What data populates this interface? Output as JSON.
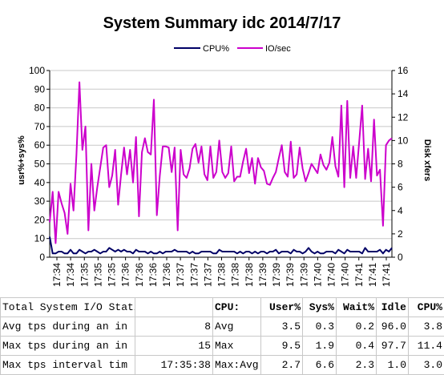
{
  "chart_data": {
    "type": "line",
    "title": "System Summary idc  2014/7/17",
    "ylabel_left": "usr%+sys%",
    "ylabel_right": "Disk xfers",
    "ylim_left": [
      0,
      100
    ],
    "ylim_right": [
      0,
      16
    ],
    "yticks_left": [
      0,
      10,
      20,
      30,
      40,
      50,
      60,
      70,
      80,
      90,
      100
    ],
    "yticks_right": [
      0,
      2,
      4,
      6,
      8,
      10,
      12,
      14,
      16
    ],
    "x_labels": [
      "17:34",
      "17:34",
      "17:35",
      "17:35",
      "17:35",
      "17:36",
      "17:36",
      "17:36",
      "17:36",
      "17:37",
      "17:37",
      "17:37",
      "17:38",
      "17:38",
      "17:38",
      "17:39",
      "17:39",
      "17:39",
      "17:39",
      "17:40",
      "17:40",
      "17:40",
      "17:41",
      "17:41",
      "17:41"
    ],
    "grid": "horizontal",
    "legend_position": "top",
    "series": [
      {
        "name": "CPU%",
        "axis": "left",
        "color": "#000066",
        "values": [
          11,
          2,
          2,
          3,
          3,
          2,
          2,
          4,
          2,
          2,
          4,
          3,
          2,
          3,
          3,
          4,
          3,
          2,
          3,
          3,
          5,
          4,
          3,
          4,
          3,
          4,
          3,
          3,
          2,
          4,
          3,
          3,
          3,
          2,
          3,
          2,
          2,
          3,
          2,
          3,
          3,
          3,
          4,
          3,
          3,
          3,
          3,
          2,
          3,
          2,
          2,
          3,
          3,
          3,
          3,
          2,
          2,
          4,
          3,
          3,
          3,
          3,
          3,
          2,
          3,
          2,
          3,
          3,
          2,
          3,
          2,
          3,
          3,
          2,
          3,
          3,
          4,
          2,
          3,
          3,
          3,
          2,
          4,
          3,
          3,
          2,
          3,
          5,
          3,
          2,
          3,
          2,
          2,
          3,
          3,
          3,
          2,
          4,
          3,
          2,
          4,
          3,
          3,
          3,
          3,
          2,
          5,
          3,
          3,
          3,
          3,
          4,
          2,
          4,
          3,
          5
        ]
      },
      {
        "name": "IO/sec",
        "axis": "right",
        "color": "#cc00cc",
        "values": [
          3,
          5.6,
          1.2,
          5.6,
          4.6,
          3.8,
          2,
          6.3,
          4,
          8.8,
          15,
          9.2,
          11.2,
          2.3,
          8,
          4,
          6,
          7.7,
          9.4,
          9.6,
          6,
          7,
          9.2,
          4.5,
          7.1,
          9.4,
          7.1,
          9.2,
          6.4,
          10.3,
          3.5,
          9,
          10.2,
          9,
          8.8,
          13.5,
          3.6,
          7,
          9.5,
          9.5,
          9.4,
          7.3,
          9.4,
          2.3,
          9.2,
          7.1,
          6.8,
          7.6,
          9.3,
          9.7,
          8.1,
          9.5,
          7.1,
          6.6,
          9.5,
          6.8,
          7.3,
          10,
          7.3,
          6.8,
          7.2,
          9.5,
          6.5,
          6.9,
          6.9,
          8.2,
          9.3,
          7.2,
          8.5,
          6.3,
          8.5,
          7.7,
          7.4,
          6.3,
          6.2,
          6.8,
          7.3,
          8.5,
          9.6,
          7.3,
          6.9,
          9.9,
          6.8,
          7.1,
          9.4,
          7.6,
          6.5,
          7.2,
          8,
          7.6,
          7.2,
          8.8,
          7.9,
          7.5,
          8.1,
          10.3,
          7.8,
          6.9,
          13,
          6,
          13.4,
          6.8,
          9.5,
          6.8,
          9.9,
          13,
          6.7,
          9.3,
          6.5,
          11.8,
          7,
          7.5,
          2.7,
          9.6,
          10,
          10.2
        ]
      }
    ]
  },
  "stats_table": {
    "rows": [
      [
        "Total System I/O Statistics",
        "",
        "CPU:",
        "User%",
        "Sys%",
        "Wait%",
        "Idle",
        "CPU%"
      ],
      [
        "Avg tps during an in",
        "8",
        "Avg",
        "3.5",
        "0.3",
        "0.2",
        "96.0",
        "3.8"
      ],
      [
        "Max tps during an in",
        "15",
        "Max",
        "9.5",
        "1.9",
        "0.4",
        "97.7",
        "11.4"
      ],
      [
        "Max tps interval tim",
        "17:35:38",
        "Max:Avg",
        "2.7",
        "6.6",
        "2.3",
        "1.0",
        "3.0"
      ]
    ]
  }
}
